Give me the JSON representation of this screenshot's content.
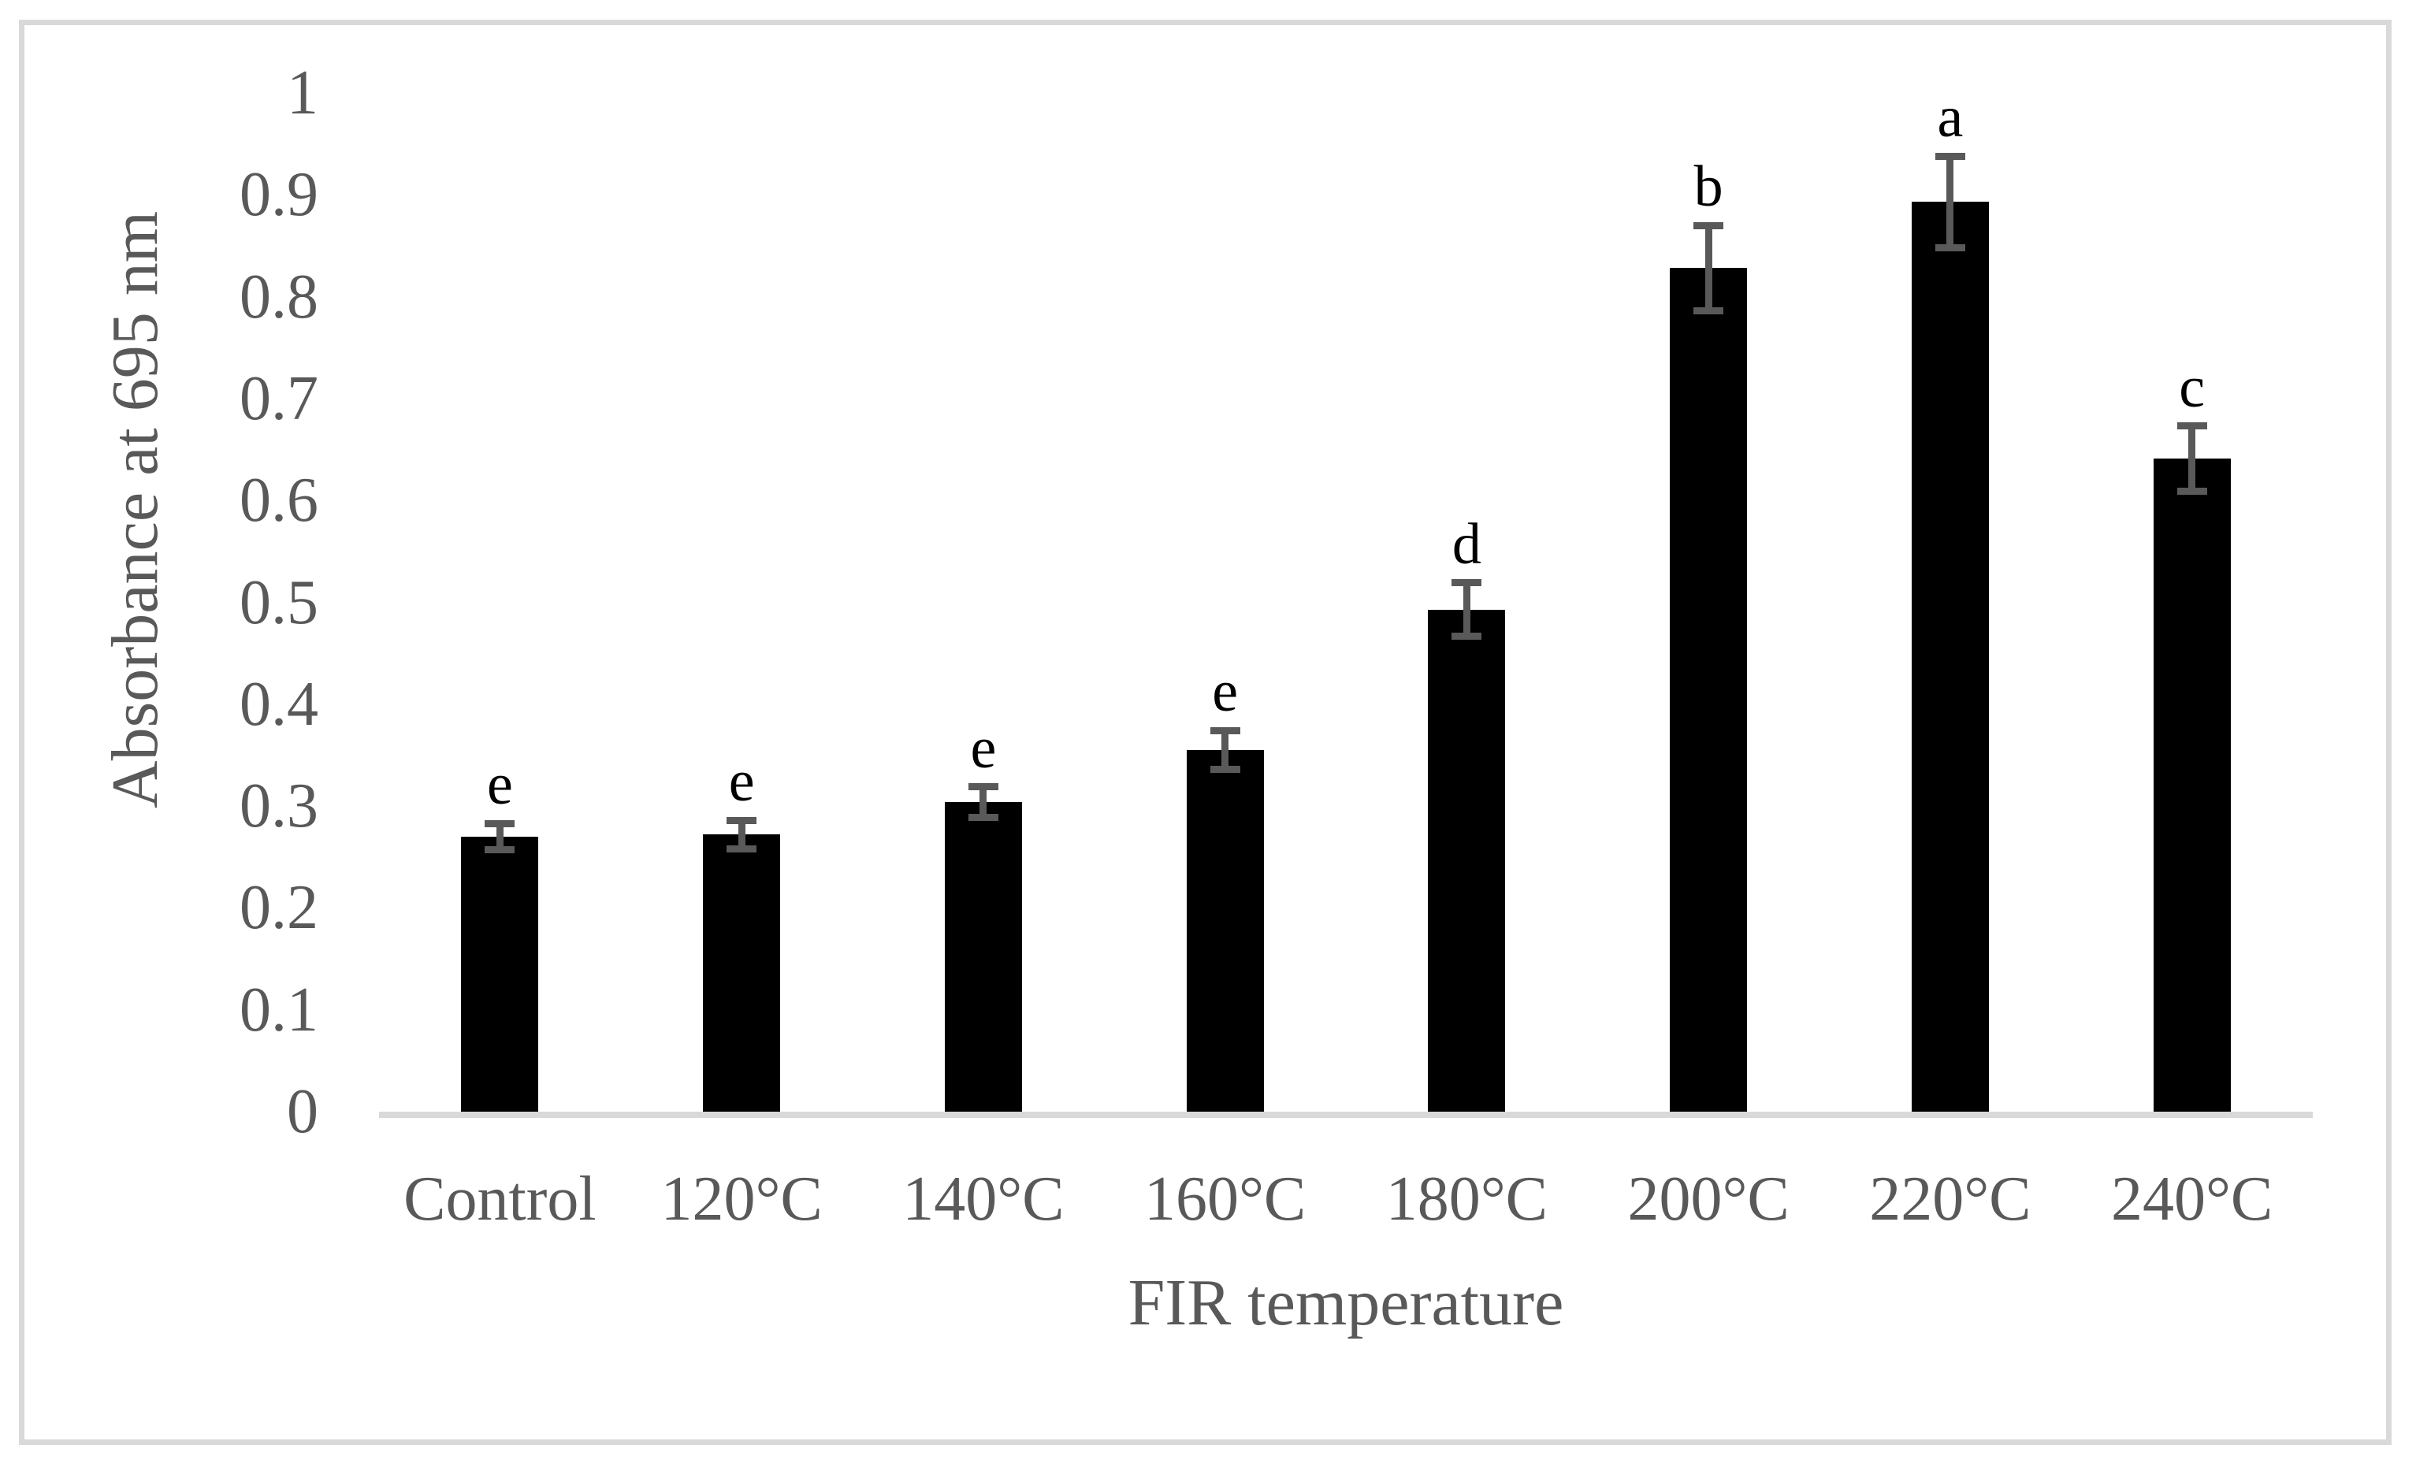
{
  "figure": {
    "y_axis_title": "Absorbance at 695 nm",
    "x_axis_title": "FIR temperature"
  },
  "chart_data": {
    "type": "bar",
    "title": "",
    "xlabel": "FIR temperature",
    "ylabel": "Absorbance at 695 nm",
    "categories": [
      "Control",
      "120°C",
      "140°C",
      "160°C",
      "180°C",
      "200°C",
      "220°C",
      "240°C"
    ],
    "values": [
      0.27,
      0.272,
      0.304,
      0.355,
      0.493,
      0.828,
      0.893,
      0.641
    ],
    "error_bars": [
      0.013,
      0.014,
      0.015,
      0.019,
      0.026,
      0.042,
      0.045,
      0.032
    ],
    "significance_letters": [
      "e",
      "e",
      "e",
      "e",
      "d",
      "b",
      "a",
      "c"
    ],
    "y_ticks": [
      {
        "value": 0.0,
        "label": "0"
      },
      {
        "value": 0.1,
        "label": "0.1"
      },
      {
        "value": 0.2,
        "label": "0.2"
      },
      {
        "value": 0.3,
        "label": "0.3"
      },
      {
        "value": 0.4,
        "label": "0.4"
      },
      {
        "value": 0.5,
        "label": "0.5"
      },
      {
        "value": 0.6,
        "label": "0.6"
      },
      {
        "value": 0.7,
        "label": "0.7"
      },
      {
        "value": 0.8,
        "label": "0.8"
      },
      {
        "value": 0.9,
        "label": "0.9"
      },
      {
        "value": 1.0,
        "label": "1"
      }
    ],
    "ylim": [
      0,
      1
    ],
    "grid": false,
    "legend": false,
    "colors": {
      "bar": "#000000",
      "error_bar": "#595959",
      "axis_text": "#595959",
      "letter_text": "#000000",
      "baseline": "#d9d9d9",
      "figure_border": "#d9d9d9",
      "background": "#ffffff"
    }
  }
}
